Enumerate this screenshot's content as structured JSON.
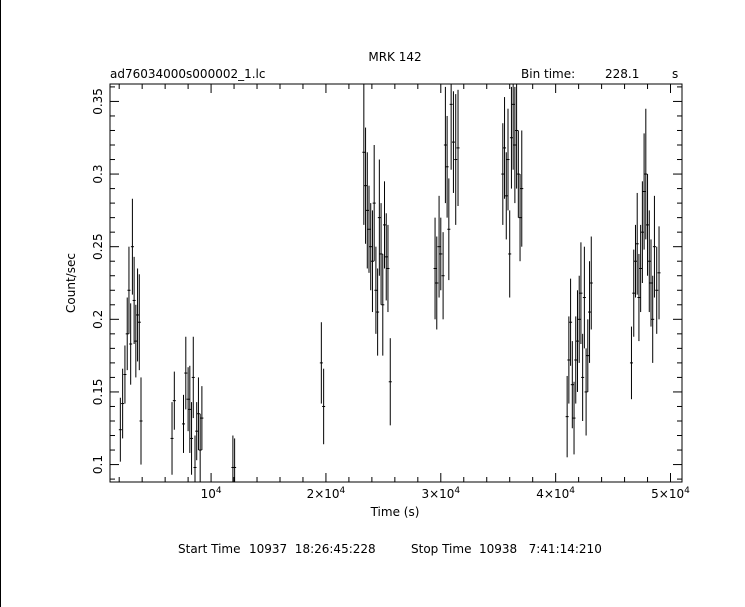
{
  "chart_data": {
    "type": "scatter",
    "title": "MRK 142",
    "file_label": "ad76034000s000002_1.lc",
    "bin_time_label": "Bin time:",
    "bin_time_value": "228.1",
    "bin_time_unit": "s",
    "xlabel": "Time (s)",
    "ylabel": "Count/sec",
    "xlim": [
      1200,
      51000
    ],
    "ylim": [
      0.088,
      0.362
    ],
    "x_ticks": [
      {
        "value": 10000,
        "mant": "10",
        "exp": "4"
      },
      {
        "value": 20000,
        "mant": "2×10",
        "exp": "4"
      },
      {
        "value": 30000,
        "mant": "3×10",
        "exp": "4"
      },
      {
        "value": 40000,
        "mant": "4×10",
        "exp": "4"
      },
      {
        "value": 50000,
        "mant": "5×10",
        "exp": "4"
      }
    ],
    "y_ticks": [
      {
        "value": 0.1,
        "label": "0.1"
      },
      {
        "value": 0.15,
        "label": "0.15"
      },
      {
        "value": 0.2,
        "label": "0.2"
      },
      {
        "value": 0.25,
        "label": "0.25"
      },
      {
        "value": 0.3,
        "label": "0.3"
      },
      {
        "value": 0.35,
        "label": "0.35"
      }
    ],
    "points": [
      [
        2100,
        0.124,
        0.022
      ],
      [
        2300,
        0.142,
        0.024
      ],
      [
        2500,
        0.162,
        0.02
      ],
      [
        2700,
        0.19,
        0.025
      ],
      [
        2850,
        0.22,
        0.03
      ],
      [
        3000,
        0.183,
        0.028
      ],
      [
        3150,
        0.25,
        0.033
      ],
      [
        3300,
        0.213,
        0.03
      ],
      [
        3450,
        0.185,
        0.025
      ],
      [
        3600,
        0.203,
        0.032
      ],
      [
        3750,
        0.198,
        0.033
      ],
      [
        3900,
        0.13,
        0.03
      ],
      [
        6600,
        0.118,
        0.025
      ],
      [
        6800,
        0.144,
        0.02
      ],
      [
        7600,
        0.128,
        0.02
      ],
      [
        7800,
        0.163,
        0.025
      ],
      [
        8000,
        0.145,
        0.022
      ],
      [
        8150,
        0.138,
        0.03
      ],
      [
        8300,
        0.118,
        0.025
      ],
      [
        8450,
        0.16,
        0.028
      ],
      [
        8600,
        0.098,
        0.022
      ],
      [
        8750,
        0.123,
        0.02
      ],
      [
        8900,
        0.135,
        0.025
      ],
      [
        9050,
        0.11,
        0.025
      ],
      [
        9200,
        0.132,
        0.022
      ],
      [
        11900,
        0.098,
        0.022
      ],
      [
        12050,
        0.098,
        0.02
      ],
      [
        19600,
        0.17,
        0.028
      ],
      [
        19800,
        0.14,
        0.026
      ],
      [
        23300,
        0.315,
        0.05
      ],
      [
        23450,
        0.292,
        0.04
      ],
      [
        23600,
        0.275,
        0.04
      ],
      [
        23750,
        0.262,
        0.03
      ],
      [
        23900,
        0.25,
        0.03
      ],
      [
        24050,
        0.24,
        0.035
      ],
      [
        24200,
        0.28,
        0.04
      ],
      [
        24350,
        0.22,
        0.03
      ],
      [
        24500,
        0.205,
        0.03
      ],
      [
        24650,
        0.27,
        0.04
      ],
      [
        24800,
        0.245,
        0.035
      ],
      [
        24950,
        0.21,
        0.035
      ],
      [
        25100,
        0.265,
        0.03
      ],
      [
        25250,
        0.243,
        0.03
      ],
      [
        25400,
        0.235,
        0.03
      ],
      [
        25600,
        0.157,
        0.03
      ],
      [
        29500,
        0.235,
        0.035
      ],
      [
        29650,
        0.225,
        0.032
      ],
      [
        29850,
        0.25,
        0.035
      ],
      [
        30000,
        0.245,
        0.025
      ],
      [
        30200,
        0.23,
        0.03
      ],
      [
        30400,
        0.32,
        0.04
      ],
      [
        30550,
        0.305,
        0.035
      ],
      [
        30700,
        0.262,
        0.035
      ],
      [
        30900,
        0.348,
        0.045
      ],
      [
        31100,
        0.322,
        0.035
      ],
      [
        31300,
        0.31,
        0.045
      ],
      [
        31500,
        0.318,
        0.04
      ],
      [
        35400,
        0.3,
        0.035
      ],
      [
        35550,
        0.318,
        0.035
      ],
      [
        35700,
        0.285,
        0.03
      ],
      [
        35850,
        0.31,
        0.035
      ],
      [
        36000,
        0.245,
        0.03
      ],
      [
        36150,
        0.325,
        0.035
      ],
      [
        36300,
        0.348,
        0.045
      ],
      [
        36450,
        0.32,
        0.04
      ],
      [
        36600,
        0.33,
        0.04
      ],
      [
        36750,
        0.3,
        0.03
      ],
      [
        36900,
        0.27,
        0.03
      ],
      [
        37050,
        0.29,
        0.04
      ],
      [
        41000,
        0.133,
        0.028
      ],
      [
        41150,
        0.172,
        0.03
      ],
      [
        41300,
        0.198,
        0.03
      ],
      [
        41450,
        0.155,
        0.03
      ],
      [
        41600,
        0.132,
        0.025
      ],
      [
        41750,
        0.172,
        0.03
      ],
      [
        41900,
        0.185,
        0.035
      ],
      [
        42050,
        0.2,
        0.03
      ],
      [
        42200,
        0.218,
        0.035
      ],
      [
        42350,
        0.16,
        0.03
      ],
      [
        42500,
        0.215,
        0.035
      ],
      [
        42650,
        0.15,
        0.03
      ],
      [
        42800,
        0.175,
        0.025
      ],
      [
        42950,
        0.205,
        0.035
      ],
      [
        43100,
        0.225,
        0.032
      ],
      [
        46600,
        0.17,
        0.025
      ],
      [
        46800,
        0.218,
        0.03
      ],
      [
        46950,
        0.24,
        0.025
      ],
      [
        47100,
        0.252,
        0.035
      ],
      [
        47250,
        0.215,
        0.03
      ],
      [
        47400,
        0.235,
        0.03
      ],
      [
        47550,
        0.26,
        0.035
      ],
      [
        47700,
        0.288,
        0.04
      ],
      [
        47850,
        0.3,
        0.045
      ],
      [
        48000,
        0.265,
        0.035
      ],
      [
        48150,
        0.24,
        0.035
      ],
      [
        48300,
        0.225,
        0.03
      ],
      [
        48450,
        0.2,
        0.03
      ],
      [
        48600,
        0.25,
        0.035
      ],
      [
        48800,
        0.22,
        0.03
      ],
      [
        49000,
        0.232,
        0.032
      ]
    ],
    "footer": {
      "start_label": "Start Time",
      "start_value": "10937  18:26:45:228",
      "stop_label": "Stop Time",
      "stop_value": "10938   7:41:14:210"
    }
  }
}
